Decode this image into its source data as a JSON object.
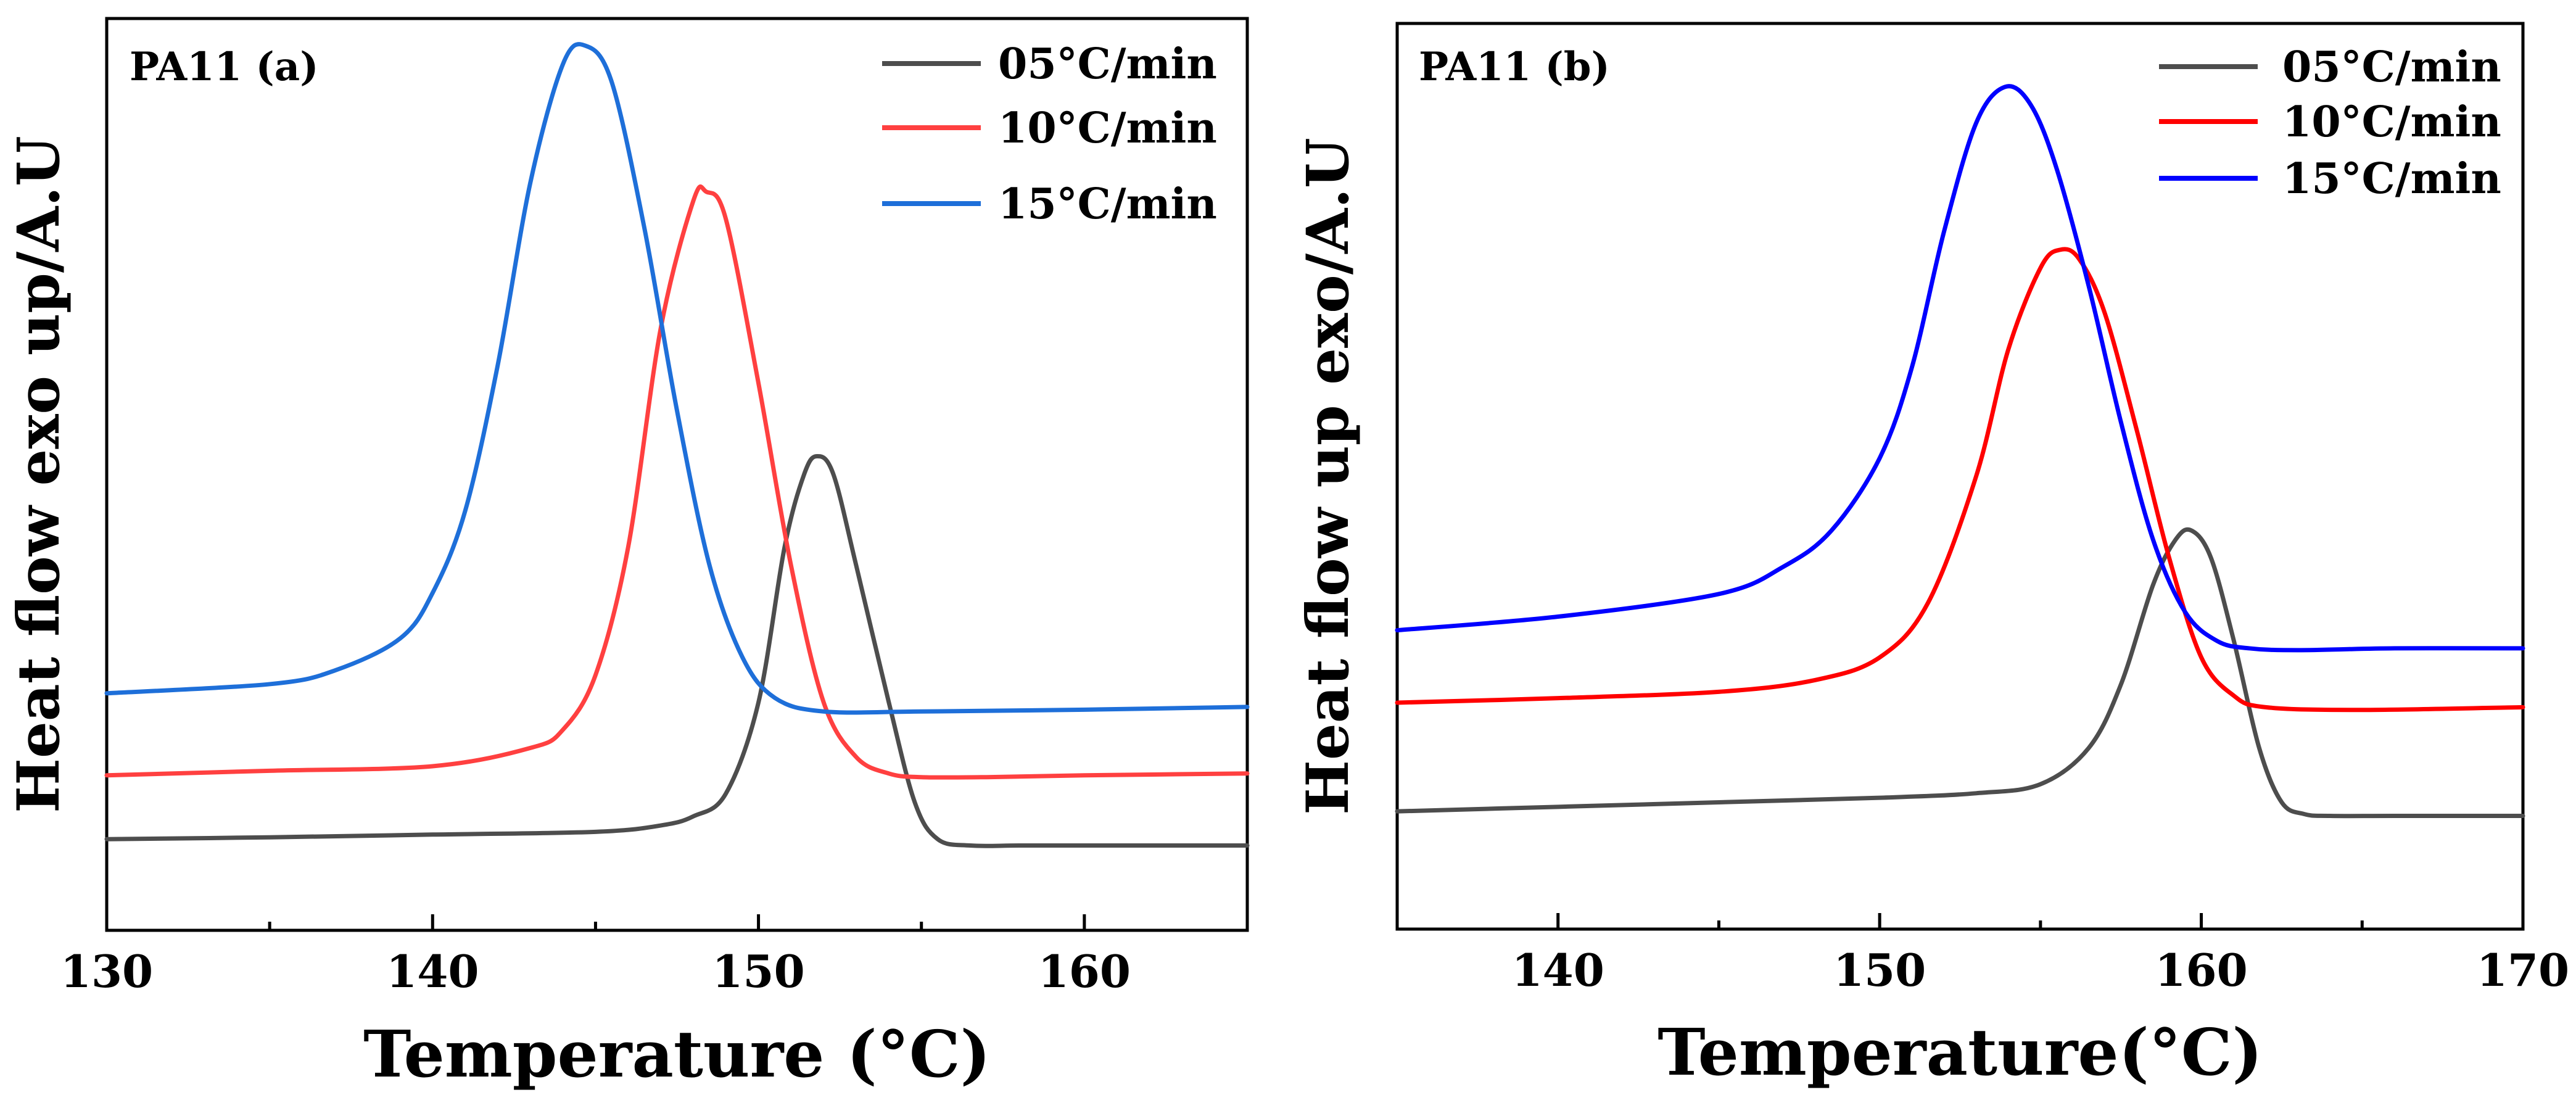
{
  "chart_data": [
    {
      "type": "line",
      "panel_label": "PA11 (a)",
      "xlabel": "Temperature (°C)",
      "ylabel": "Heat flow exo up/A.U",
      "xlim": [
        130,
        165
      ],
      "ylim": [
        0,
        1
      ],
      "xticks": [
        130,
        140,
        150,
        160
      ],
      "yticks": false,
      "grid": false,
      "legend_position": "top-right",
      "series": [
        {
          "name": "05°C/min",
          "color": "#4d4d4d",
          "x": [
            130,
            135,
            140,
            145,
            147,
            148,
            149,
            150,
            150.8,
            151.4,
            151.8,
            152.3,
            153,
            154,
            154.8,
            155.5,
            156.5,
            158,
            160,
            162,
            165
          ],
          "y": [
            0.1,
            0.102,
            0.105,
            0.108,
            0.115,
            0.125,
            0.15,
            0.25,
            0.42,
            0.5,
            0.52,
            0.5,
            0.4,
            0.25,
            0.14,
            0.1,
            0.093,
            0.093,
            0.093,
            0.093,
            0.093
          ]
        },
        {
          "name": "10°C/min",
          "color": "#ff4040",
          "x": [
            130,
            135,
            140,
            143,
            144,
            145,
            146,
            147,
            148,
            148.4,
            149,
            150,
            151,
            152,
            153,
            154,
            155,
            157,
            160,
            165
          ],
          "y": [
            0.17,
            0.175,
            0.18,
            0.2,
            0.22,
            0.28,
            0.42,
            0.66,
            0.8,
            0.81,
            0.78,
            0.6,
            0.4,
            0.25,
            0.19,
            0.172,
            0.168,
            0.168,
            0.17,
            0.172
          ]
        },
        {
          "name": "15°C/min",
          "color": "#1e6fd9",
          "x": [
            130,
            135,
            137,
            139,
            140,
            141,
            142,
            143,
            144,
            144.7,
            145.5,
            146.5,
            147.5,
            148.5,
            149.5,
            150.5,
            152,
            155,
            160,
            165
          ],
          "y": [
            0.26,
            0.27,
            0.285,
            0.32,
            0.37,
            0.46,
            0.62,
            0.82,
            0.95,
            0.97,
            0.93,
            0.77,
            0.57,
            0.4,
            0.3,
            0.255,
            0.24,
            0.24,
            0.242,
            0.245
          ]
        }
      ]
    },
    {
      "type": "line",
      "panel_label": "PA11 (b)",
      "xlabel": "Temperature(°C)",
      "ylabel": "Heat flow up exo/A.U",
      "xlim": [
        135,
        170
      ],
      "ylim": [
        0,
        1
      ],
      "xticks": [
        140,
        150,
        160,
        170
      ],
      "yticks": false,
      "grid": false,
      "legend_position": "top-right",
      "series": [
        {
          "name": "05°C/min",
          "color": "#4d4d4d",
          "x": [
            135,
            140,
            145,
            150,
            153,
            155,
            156.5,
            157.5,
            158.5,
            159.2,
            159.7,
            160.3,
            161,
            161.8,
            162.5,
            163.2,
            164,
            166,
            170
          ],
          "y": [
            0.13,
            0.135,
            0.14,
            0.145,
            0.15,
            0.16,
            0.2,
            0.27,
            0.38,
            0.43,
            0.44,
            0.41,
            0.32,
            0.2,
            0.14,
            0.127,
            0.125,
            0.125,
            0.125
          ]
        },
        {
          "name": "10°C/min",
          "color": "#ff0000",
          "x": [
            135,
            140,
            145,
            148,
            150,
            151.5,
            153,
            154,
            155,
            155.6,
            156.2,
            157,
            158,
            159,
            160,
            161,
            162,
            165,
            170
          ],
          "y": [
            0.25,
            0.255,
            0.262,
            0.275,
            0.3,
            0.36,
            0.5,
            0.64,
            0.73,
            0.75,
            0.74,
            0.68,
            0.55,
            0.41,
            0.3,
            0.258,
            0.245,
            0.242,
            0.245
          ]
        },
        {
          "name": "15°C/min",
          "color": "#0000ff",
          "x": [
            135,
            140,
            145,
            147,
            148.5,
            150,
            151,
            152,
            153,
            153.9,
            154.7,
            155.5,
            156.5,
            157.5,
            158.5,
            159.5,
            160.5,
            161.5,
            163,
            166,
            170
          ],
          "y": [
            0.33,
            0.345,
            0.37,
            0.4,
            0.44,
            0.52,
            0.62,
            0.77,
            0.89,
            0.93,
            0.91,
            0.84,
            0.71,
            0.56,
            0.43,
            0.35,
            0.318,
            0.31,
            0.308,
            0.31,
            0.31
          ]
        }
      ]
    }
  ]
}
